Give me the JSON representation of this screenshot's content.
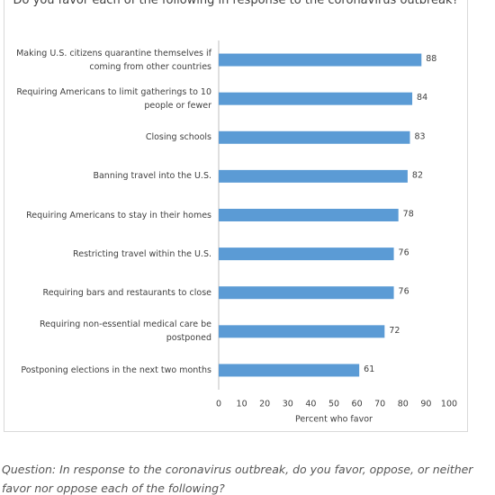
{
  "chart_data": {
    "type": "hbar",
    "title": "Do you favor each of the following in response to the coronavirus outbreak?",
    "categories": [
      "Making U.S. citizens quarantine themselves if coming from other countries",
      "Requiring Americans to limit gatherings to 10 people or fewer",
      "Closing schools",
      "Banning travel into the U.S.",
      "Requiring Americans to stay in their homes",
      "Restricting travel within the U.S.",
      "Requiring bars and restaurants to close",
      "Requiring non-essential medical care be postponed",
      "Postponing elections in the next two months"
    ],
    "values": [
      88,
      84,
      83,
      82,
      78,
      76,
      76,
      72,
      61
    ],
    "color": "#5b9bd5",
    "x_label": "Percent who favor",
    "xlim": [
      0,
      100
    ],
    "xticks": [
      0,
      10,
      20,
      30,
      40,
      50,
      60,
      70,
      80,
      90,
      100
    ]
  },
  "question": "Question: In response to the coronavirus outbreak, do you favor, oppose, or neither favor nor oppose each of the following?"
}
